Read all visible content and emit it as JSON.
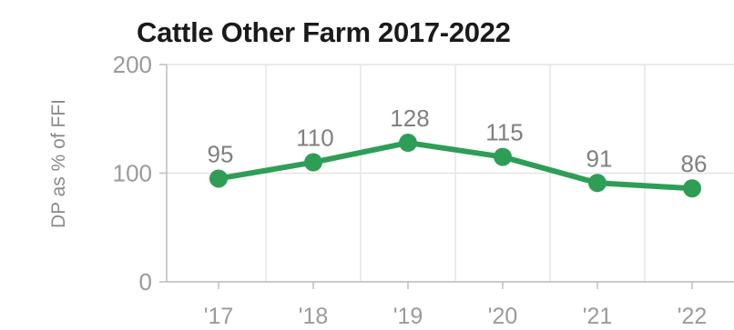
{
  "chart_data": {
    "type": "line",
    "title": "Cattle Other Farm 2017-2022",
    "xlabel": "",
    "ylabel": "DP as % of FFI",
    "categories": [
      "'17",
      "'18",
      "'19",
      "'20",
      "'21",
      "'22"
    ],
    "series": [
      {
        "values": [
          95,
          110,
          128,
          115,
          91,
          86
        ],
        "color": "#2e9e57"
      }
    ],
    "ylim": [
      0,
      200
    ],
    "yticks": [
      0,
      100,
      200
    ],
    "grid": true,
    "data_labels": true
  }
}
